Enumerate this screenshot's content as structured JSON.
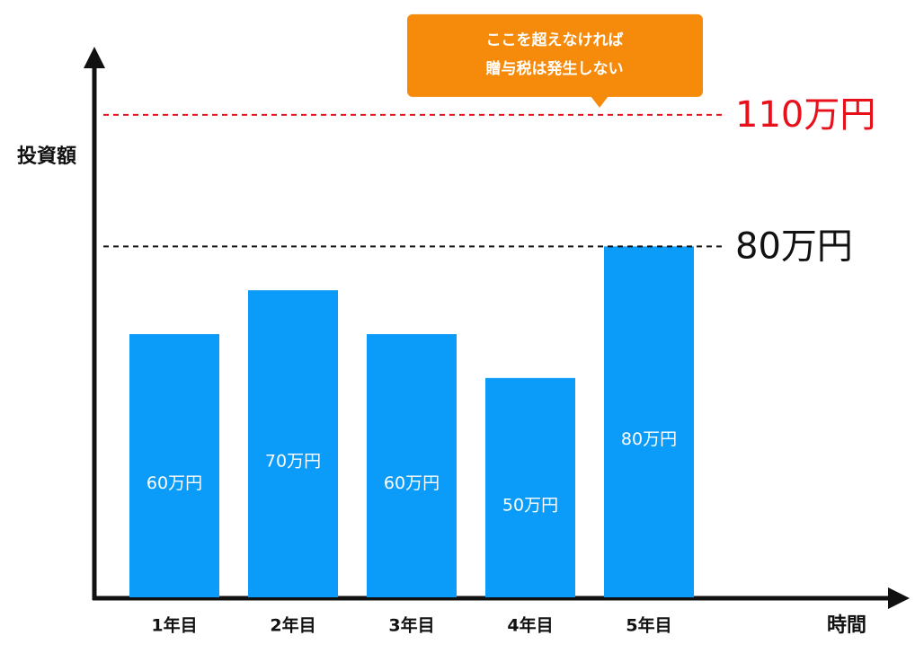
{
  "chart_data": {
    "type": "bar",
    "y_label": "投資額",
    "x_label": "時間",
    "categories": [
      "1年目",
      "2年目",
      "3年目",
      "4年目",
      "5年目"
    ],
    "values": [
      60,
      70,
      60,
      50,
      80
    ],
    "value_labels": [
      "60万円",
      "70万円",
      "60万円",
      "50万円",
      "80万円"
    ],
    "color": "#0a9cf8",
    "ylim": [
      0,
      120
    ],
    "reference_lines": [
      {
        "value": 110,
        "label": "110万円",
        "color": "#e8101b"
      },
      {
        "value": 80,
        "label": "80万円",
        "color": "#111111"
      }
    ],
    "annotation": {
      "lines": [
        "ここを超えなければ",
        "贈与税は発生しない"
      ],
      "color": "#f68a0a",
      "target": 110
    }
  }
}
